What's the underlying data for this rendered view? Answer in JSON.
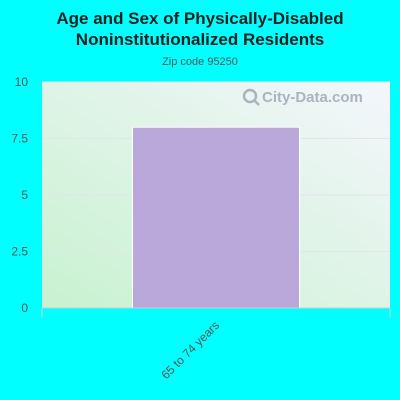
{
  "header": {
    "title_line1": "Age and Sex of Physically-Disabled",
    "title_line2": "Noninstitutionalized Residents",
    "subtitle": "Zip code 95250"
  },
  "watermark": {
    "text": "City-Data.com"
  },
  "colors": {
    "page_background": "#00ffff",
    "bar": "#bba8da",
    "plot_gradient_top_right": "#f4f6fc",
    "plot_gradient_bottom_left": "#c8f2d0"
  },
  "chart_data": {
    "type": "bar",
    "title": "Age and Sex of Physically-Disabled Noninstitutionalized Residents",
    "subtitle": "Zip code 95250",
    "categories": [
      "65 to 74 years"
    ],
    "values": [
      8
    ],
    "ylim": [
      0,
      10
    ],
    "yticks": [
      0,
      2.5,
      5,
      7.5,
      10
    ],
    "ytick_labels": [
      "0",
      "2.5",
      "5",
      "7.5",
      "10"
    ],
    "xlabel": "",
    "ylabel": "",
    "grid": true,
    "legend": "none"
  }
}
